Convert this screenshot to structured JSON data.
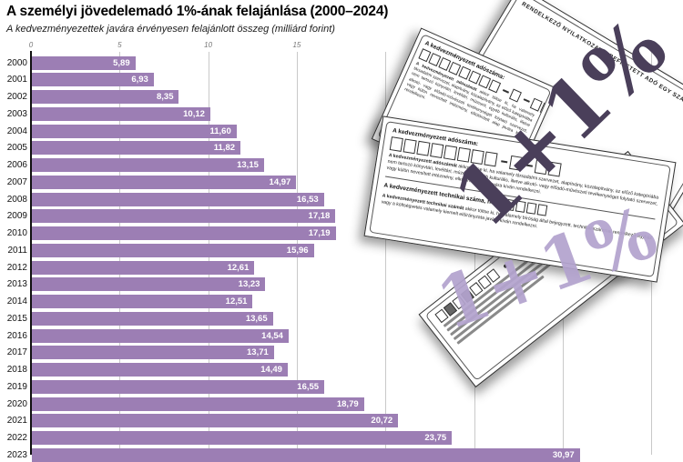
{
  "header": {
    "title": "A személyi jövedelemadó 1%-ának felajánlása (2000–2024)",
    "subtitle": "A kedvezményezettek javára érvényesen felajánlott összeg (milliárd forint)"
  },
  "chart_data": {
    "type": "bar",
    "orientation": "horizontal",
    "title": "A személyi jövedelemadó 1%-ának felajánlása (2000–2024)",
    "subtitle": "A kedvezményezettek javára érvényesen felajánlott összeg (milliárd forint)",
    "unit": "milliárd forint",
    "categories": [
      "2000",
      "2001",
      "2002",
      "2003",
      "2004",
      "2005",
      "2006",
      "2007",
      "2008",
      "2009",
      "2010",
      "2011",
      "2012",
      "2013",
      "2014",
      "2015",
      "2016",
      "2017",
      "2018",
      "2019",
      "2020",
      "2021",
      "2022",
      "2023"
    ],
    "values": [
      5.89,
      6.93,
      8.35,
      10.12,
      11.6,
      11.82,
      13.15,
      14.97,
      16.53,
      17.18,
      17.19,
      15.96,
      12.61,
      13.23,
      12.51,
      13.65,
      14.54,
      13.71,
      14.49,
      16.55,
      18.79,
      20.72,
      23.75,
      30.97
    ],
    "value_labels": [
      "5,89",
      "6,93",
      "8,35",
      "10,12",
      "11,60",
      "11,82",
      "13,15",
      "14,97",
      "16,53",
      "17,18",
      "17,19",
      "15,96",
      "12,61",
      "13,23",
      "12,51",
      "13,65",
      "14,54",
      "13,71",
      "14,49",
      "16,55",
      "18,79",
      "20,72",
      "23,75",
      "30,97"
    ],
    "xlim": [
      0,
      35
    ],
    "x_tick_labels_visible": [
      "0",
      "5",
      "10",
      "15"
    ],
    "x_gridline_values": [
      5,
      10,
      15,
      20,
      25,
      30,
      35
    ],
    "grid": true,
    "legend": false,
    "bar_color": "#9c7eb4",
    "value_label_color": "#ffffff"
  },
  "collage": {
    "stamp_dark": "1+1%",
    "stamp_light": "1+1%",
    "form_back_right": {
      "header": "RENDELKEZŐ NYILATKOZAT A BEFIZETETT ADÓ EGY SZÁZALÉKÁRÓL"
    },
    "form_fields": {
      "taxnum_label": "A kedvezményezett adószáma:",
      "taxnum_boxes": [
        8,
        1,
        2
      ],
      "taxnum_para_lead": "A kedvezményezett adószámát",
      "taxnum_para_rest": " akkor töltse ki, ha valamely társadalmi szervezet, alapítvány, közalapítvány, az előző kategóriába nem tartozó könyvtári, levéltári, múzeumi, egyéb kulturális, illetve alkotó- vagy előadó-művészeti tevékenységet folytató szervezet, vagy külön nevesített intézmény, elkülönített alap javára kíván rendelkezni.",
      "technum_label": "A kedvezményezett technikai száma, neve:",
      "technum_boxes": [
        4
      ],
      "technum_para_lead": "A kedvezményezett technikai számát",
      "technum_para_rest": " akkor töltse ki, ha valamely bíróság által bejegyzett, technikai számmal rendelkező egyház vagy a költségvetés valamely kiemelt előirányzata javára kíván rendelkezni."
    }
  }
}
